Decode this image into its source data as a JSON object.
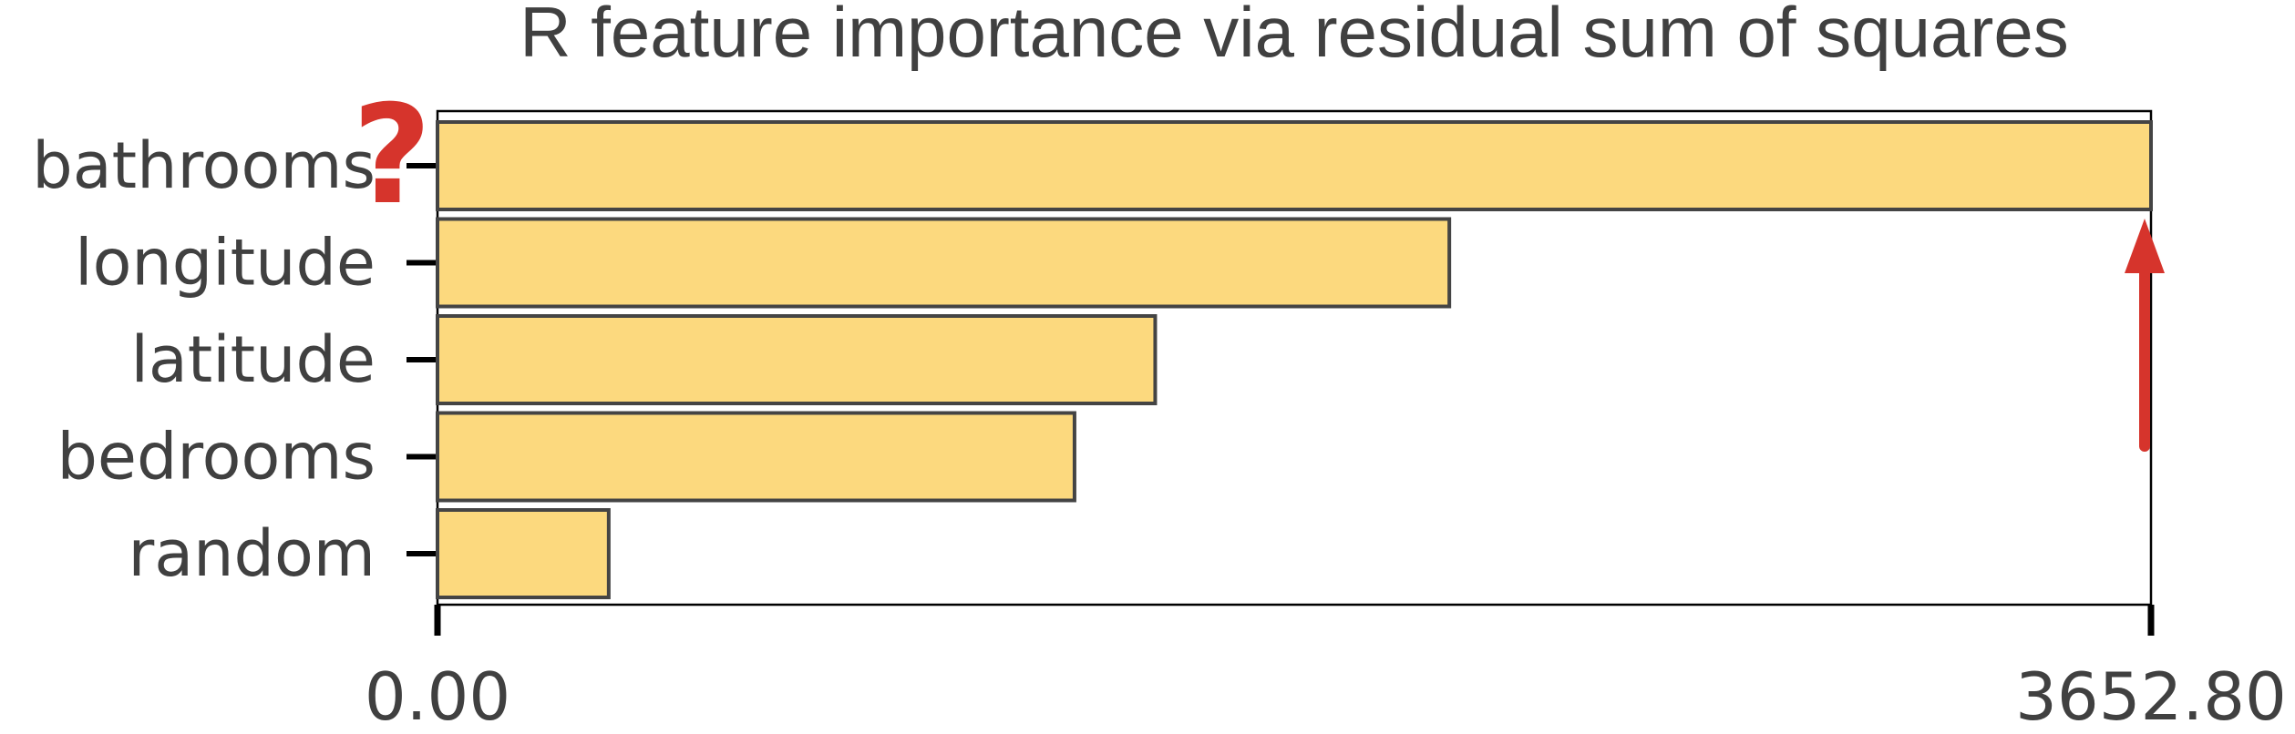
{
  "chart_data": {
    "type": "bar",
    "orientation": "horizontal",
    "title": "R feature importance via residual sum of squares",
    "xlabel": "",
    "ylabel": "",
    "categories": [
      "bathrooms",
      "longitude",
      "latitude",
      "bedrooms",
      "random"
    ],
    "values": [
      3652.8,
      2157.0,
      1530.0,
      1358.0,
      365.0
    ],
    "xlim": [
      0,
      3652.8
    ],
    "xticks": [
      "0.00",
      "3652.80"
    ],
    "grid": false,
    "legend": "none",
    "annotations": {
      "question_mark": "?",
      "arrow": "up"
    }
  },
  "colors": {
    "bar_fill": "#fcd97e",
    "bar_edge": "#444444",
    "text": "#404040",
    "annotation": "#d6342c"
  }
}
